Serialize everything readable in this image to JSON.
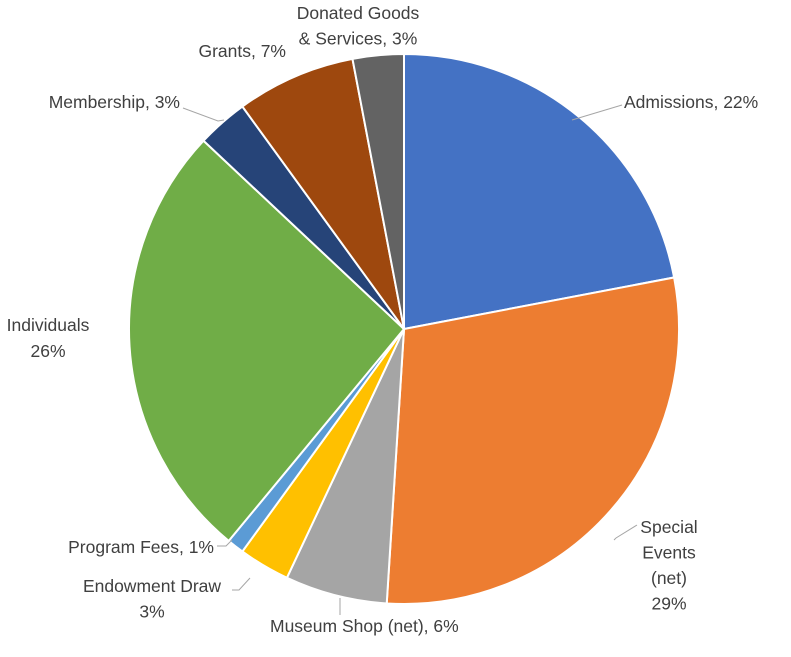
{
  "chart_data": {
    "type": "pie",
    "title": "",
    "legend": "none",
    "slices": [
      {
        "name": "Admissions",
        "value": 22,
        "label_lines": [
          "Admissions, 22%"
        ],
        "color": "#4472C4"
      },
      {
        "name": "Special Events (net)",
        "value": 29,
        "label_lines": [
          "Special",
          "Events",
          "(net)",
          "29%"
        ],
        "color": "#ED7D31"
      },
      {
        "name": "Museum Shop (net)",
        "value": 6,
        "label_lines": [
          "Museum Shop (net), 6%"
        ],
        "color": "#A5A5A5"
      },
      {
        "name": "Endowment Draw",
        "value": 3,
        "label_lines": [
          "Endowment Draw",
          "3%"
        ],
        "color": "#FFC000"
      },
      {
        "name": "Program Fees",
        "value": 1,
        "label_lines": [
          "Program Fees, 1%"
        ],
        "color": "#5B9BD5"
      },
      {
        "name": "Individuals",
        "value": 26,
        "label_lines": [
          "Individuals",
          "26%"
        ],
        "color": "#70AD47"
      },
      {
        "name": "Membership",
        "value": 3,
        "label_lines": [
          "Membership, 3%"
        ],
        "color": "#264478"
      },
      {
        "name": "Grants",
        "value": 7,
        "label_lines": [
          "Grants, 7%"
        ],
        "color": "#9E480E"
      },
      {
        "name": "Donated Goods & Services",
        "value": 3,
        "label_lines": [
          "Donated Goods",
          "& Services, 3%"
        ],
        "color": "#636363"
      }
    ]
  }
}
